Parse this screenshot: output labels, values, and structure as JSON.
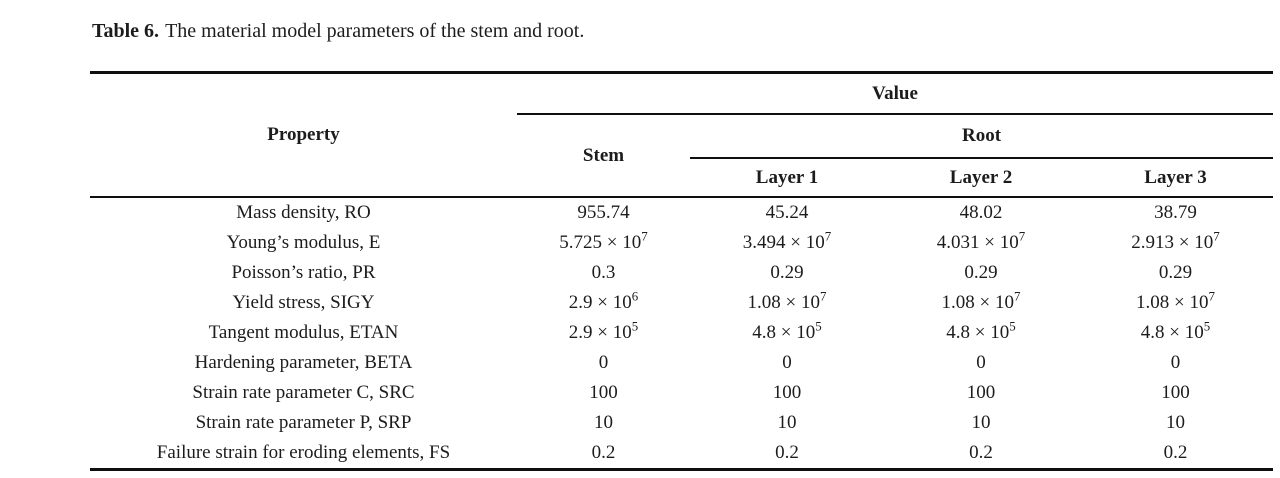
{
  "caption": {
    "label": "Table 6.",
    "text": "The material model parameters of the stem and root."
  },
  "table": {
    "header": {
      "property": "Property",
      "value": "Value",
      "stem": "Stem",
      "root": "Root",
      "layers": [
        "Layer 1",
        "Layer 2",
        "Layer 3"
      ]
    },
    "rows": [
      {
        "property": "Mass density, RO",
        "values": [
          "955.74",
          "45.24",
          "48.02",
          "38.79"
        ]
      },
      {
        "property": "Young’s modulus, E",
        "values": [
          "5.725 × 10^7",
          "3.494 × 10^7",
          "4.031 × 10^7",
          "2.913 × 10^7"
        ]
      },
      {
        "property": "Poisson’s ratio, PR",
        "values": [
          "0.3",
          "0.29",
          "0.29",
          "0.29"
        ]
      },
      {
        "property": "Yield stress, SIGY",
        "values": [
          "2.9 × 10^6",
          "1.08 × 10^7",
          "1.08 × 10^7",
          "1.08 × 10^7"
        ]
      },
      {
        "property": "Tangent modulus, ETAN",
        "values": [
          "2.9 × 10^5",
          "4.8 × 10^5",
          "4.8 × 10^5",
          "4.8 × 10^5"
        ]
      },
      {
        "property": "Hardening parameter, BETA",
        "values": [
          "0",
          "0",
          "0",
          "0"
        ]
      },
      {
        "property": "Strain rate parameter C, SRC",
        "values": [
          "100",
          "100",
          "100",
          "100"
        ]
      },
      {
        "property": "Strain rate parameter P, SRP",
        "values": [
          "10",
          "10",
          "10",
          "10"
        ]
      },
      {
        "property": "Failure strain for eroding elements, FS",
        "values": [
          "0.2",
          "0.2",
          "0.2",
          "0.2"
        ]
      }
    ]
  }
}
